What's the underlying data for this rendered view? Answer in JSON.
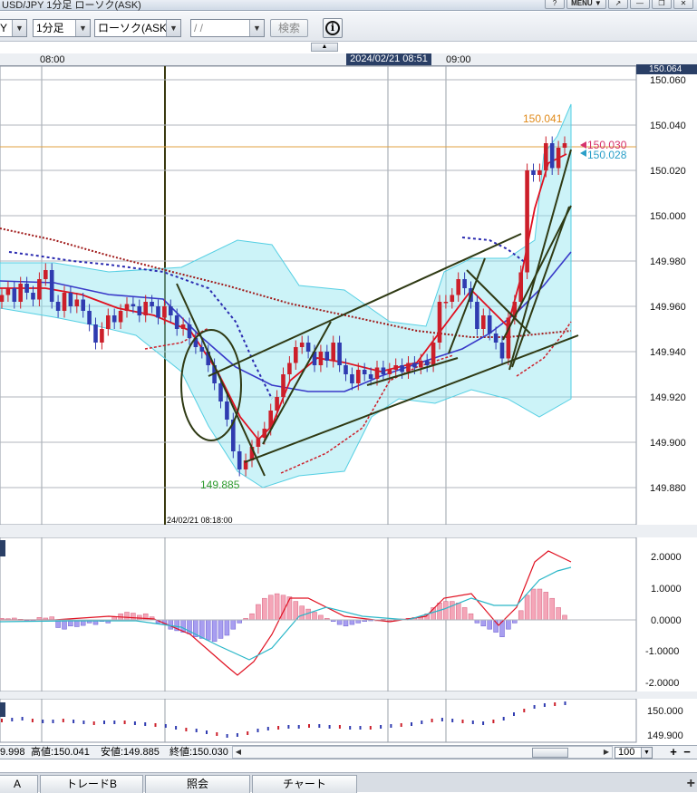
{
  "window": {
    "title": "USD/JPY 1分足 ローソク(ASK)",
    "buttons": [
      "?",
      "MENU ▼",
      "↗",
      "—",
      "❐",
      "✕"
    ]
  },
  "toolbar": {
    "symbol_value": "Y",
    "interval_value": "1分足",
    "chart_type_value": "ローソク(ASK)",
    "date_value": "  /  /",
    "search_label": "検索",
    "info_label": "i"
  },
  "time_axis": {
    "ticks": [
      {
        "label": "08:00"
      },
      {
        "label": "09:00"
      }
    ],
    "cursor_label": "2024/02/21 08:51",
    "vertical_line_label": "24/02/21 08:18:00"
  },
  "price_axis": {
    "ticks": [
      "150.060",
      "150.040",
      "150.020",
      "150.000",
      "149.980",
      "149.960",
      "149.940",
      "149.920",
      "149.900",
      "149.880"
    ],
    "cursor_price": "150.064",
    "ask_price": "150.030",
    "bid_price": "150.028",
    "high_label": "150.041",
    "low_label": "149.885"
  },
  "macd_axis": {
    "ticks": [
      "2.0000",
      "1.0000",
      "0.0000",
      "-1.0000",
      "-2.0000"
    ]
  },
  "mini_axis": {
    "ticks": [
      "150.000",
      "149.900"
    ]
  },
  "ohlc_bar": {
    "open": "9.998",
    "high": "高値:150.041",
    "low": "安値:149.885",
    "close": "終値:150.030"
  },
  "zoom": {
    "value": "100"
  },
  "tabs": [
    {
      "label": "A"
    },
    {
      "label": "トレードB"
    },
    {
      "label": "照会"
    },
    {
      "label": "チャート"
    }
  ],
  "colors": {
    "bull": "#cc1f2a",
    "bear": "#2f3bb0",
    "band": "#8fe4f0",
    "trendline": "#2f3a14",
    "ask": "#d6336c",
    "bid": "#2a9fc8",
    "high": "#e08a1a",
    "low": "#2f9c2f"
  }
}
